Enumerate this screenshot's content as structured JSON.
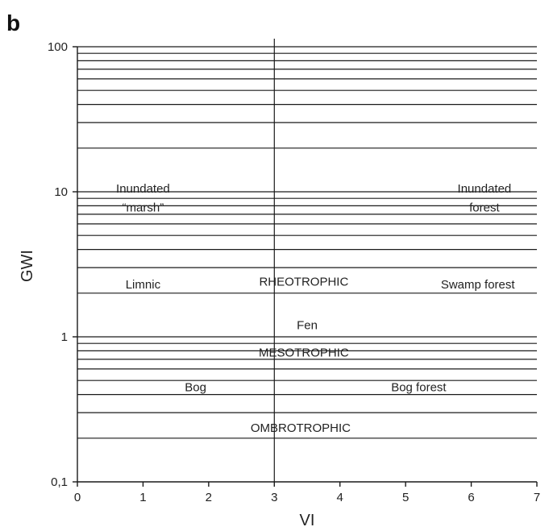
{
  "panel_label": "b",
  "chart_data": {
    "type": "scatter",
    "title": "",
    "xlabel": "VI",
    "ylabel": "GWI",
    "xlim": [
      0,
      7
    ],
    "ylim": [
      0.1,
      100
    ],
    "yscale": "log",
    "x_ticks": [
      0,
      1,
      2,
      3,
      4,
      5,
      6,
      7
    ],
    "x_tick_labels": [
      "0",
      "1",
      "2",
      "3",
      "4",
      "5",
      "6",
      "7"
    ],
    "y_ticks": [
      0.1,
      1,
      10,
      100
    ],
    "y_tick_labels": [
      "0,1",
      "1",
      "10",
      "100"
    ],
    "vertical_lines": [
      3
    ],
    "horizontal_lines": [
      0.2,
      0.3,
      0.4,
      0.5,
      0.6,
      0.7,
      0.8,
      0.9,
      1,
      2,
      3,
      4,
      5,
      6,
      7,
      8,
      9,
      10,
      20,
      30,
      40,
      50,
      60,
      70,
      80,
      90,
      100
    ],
    "annotations": [
      {
        "x": 1.0,
        "y": 10.5,
        "text": "Inundated"
      },
      {
        "x": 1.0,
        "y": 7.8,
        "text": "“marsh”"
      },
      {
        "x": 6.2,
        "y": 10.5,
        "text": "Inundated"
      },
      {
        "x": 6.2,
        "y": 7.8,
        "text": "forest"
      },
      {
        "x": 1.0,
        "y": 2.3,
        "text": "Limnic"
      },
      {
        "x": 3.45,
        "y": 2.4,
        "text": "RHEOTROPHIC"
      },
      {
        "x": 6.1,
        "y": 2.3,
        "text": "Swamp forest"
      },
      {
        "x": 3.5,
        "y": 1.2,
        "text": "Fen"
      },
      {
        "x": 3.45,
        "y": 0.78,
        "text": "MESOTROPHIC"
      },
      {
        "x": 1.8,
        "y": 0.45,
        "text": "Bog"
      },
      {
        "x": 5.2,
        "y": 0.45,
        "text": "Bog forest"
      },
      {
        "x": 3.4,
        "y": 0.235,
        "text": "OMBROTROPHIC"
      }
    ]
  }
}
